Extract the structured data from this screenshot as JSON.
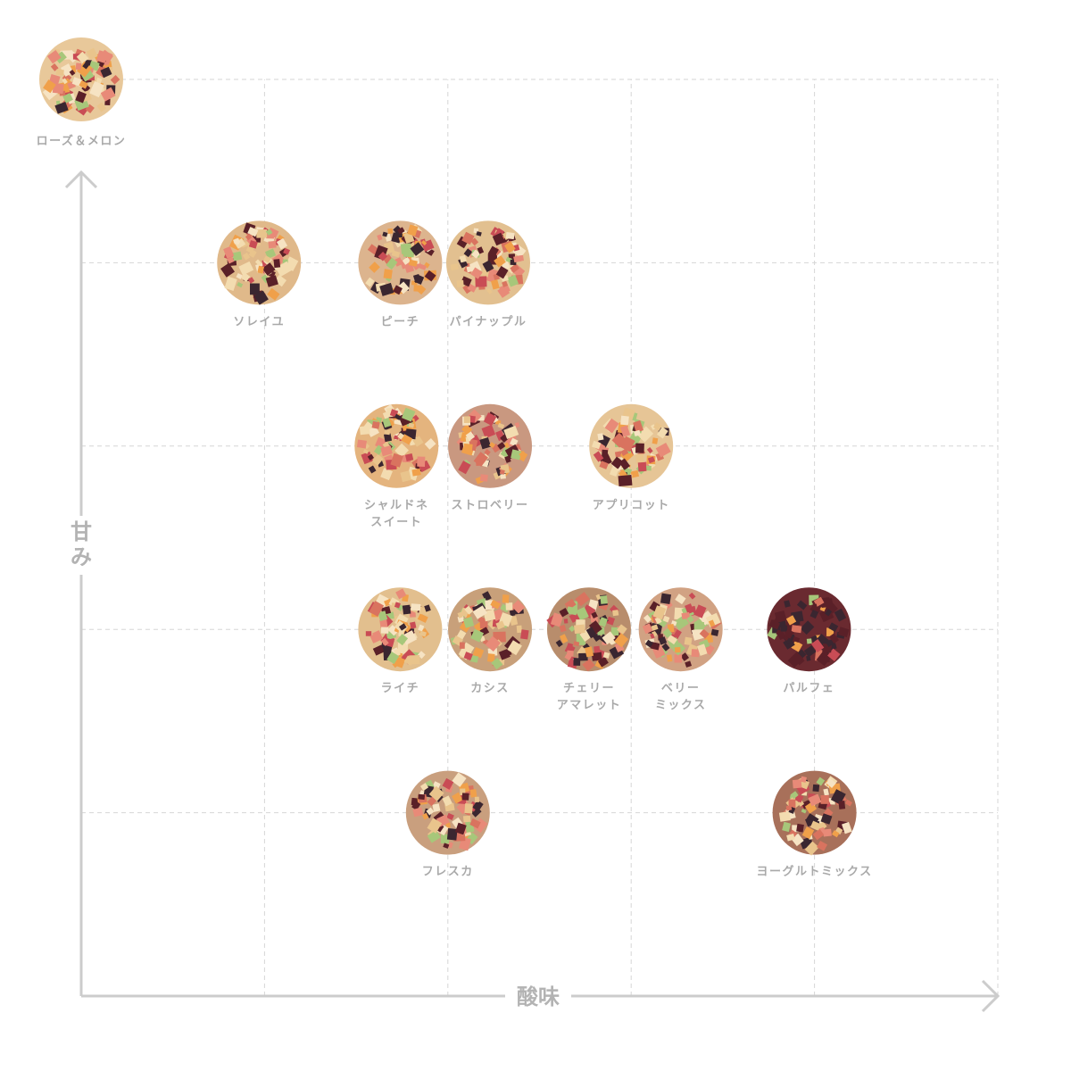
{
  "chart_data": {
    "type": "scatter",
    "title": "",
    "xlabel": "酸味",
    "ylabel": "甘み",
    "xlim": [
      0,
      5
    ],
    "ylim": [
      0,
      5
    ],
    "grid": true,
    "grid_style": "dashed",
    "colors": {
      "axis": "#c8c8c8",
      "grid": "#d6d6d6",
      "label": "#a9a9a9"
    },
    "points": [
      {
        "name": [
          "ローズ＆メロン"
        ],
        "x": 0,
        "y": 5,
        "tone": "#e8c89a"
      },
      {
        "name": [
          "ソレイユ"
        ],
        "x": 0.97,
        "y": 4,
        "tone": "#e0b98a"
      },
      {
        "name": [
          "ピーチ"
        ],
        "x": 1.74,
        "y": 4,
        "tone": "#dcb48e"
      },
      {
        "name": [
          "パイナップル"
        ],
        "x": 2.22,
        "y": 4,
        "tone": "#e2c090"
      },
      {
        "name": [
          "シャルドネ",
          "スイート"
        ],
        "x": 1.72,
        "y": 3,
        "tone": "#e4b47e"
      },
      {
        "name": [
          "ストロベリー"
        ],
        "x": 2.23,
        "y": 3,
        "tone": "#c99880"
      },
      {
        "name": [
          "アプリコット"
        ],
        "x": 3,
        "y": 3,
        "tone": "#e6c596"
      },
      {
        "name": [
          "ライチ"
        ],
        "x": 1.74,
        "y": 2,
        "tone": "#e2bf8e"
      },
      {
        "name": [
          "カシス"
        ],
        "x": 2.23,
        "y": 2,
        "tone": "#c8a07a"
      },
      {
        "name": [
          "チェリー",
          "アマレット"
        ],
        "x": 2.77,
        "y": 2,
        "tone": "#b88d6c"
      },
      {
        "name": [
          "ベリー",
          "ミックス"
        ],
        "x": 3.27,
        "y": 2,
        "tone": "#d1a283"
      },
      {
        "name": [
          "パルフェ"
        ],
        "x": 3.97,
        "y": 2,
        "tone": "#6a2a30"
      },
      {
        "name": [
          "フレスカ"
        ],
        "x": 2,
        "y": 1,
        "tone": "#c99f7e"
      },
      {
        "name": [
          "ヨーグルトミックス"
        ],
        "x": 4,
        "y": 1,
        "tone": "#a8705a"
      }
    ]
  }
}
